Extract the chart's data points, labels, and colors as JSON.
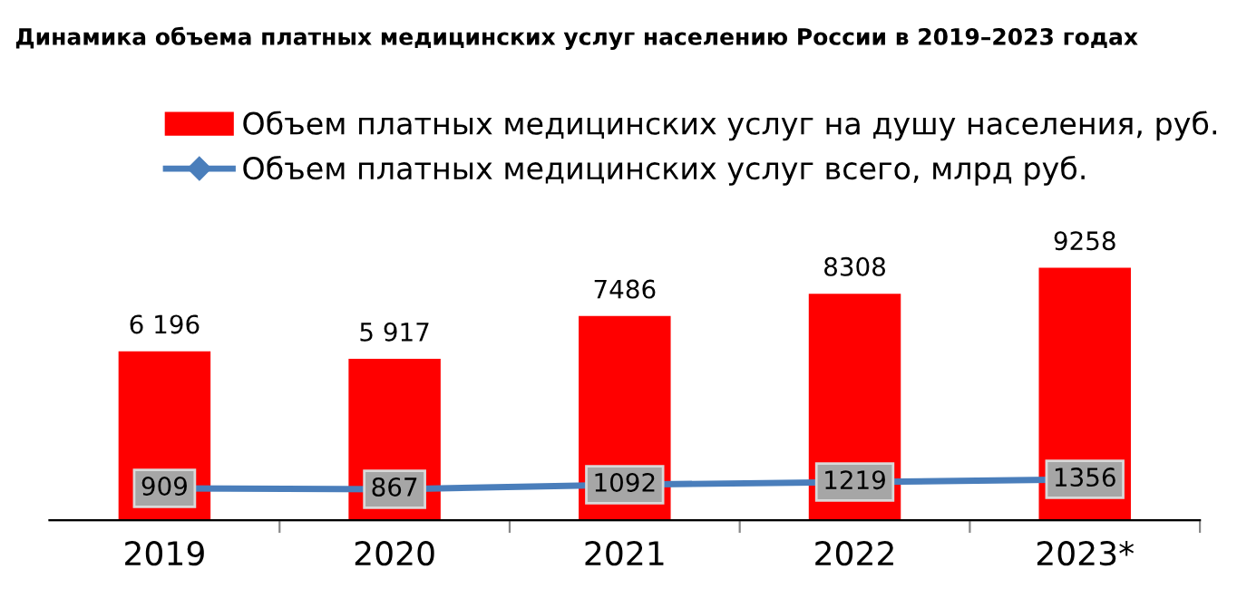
{
  "chart_data": {
    "type": "bar",
    "title": "Динамика объема платных медицинских услуг населению России в 2019–2023 годах",
    "categories": [
      "2019",
      "2020",
      "2021",
      "2022",
      "2023*"
    ],
    "series": [
      {
        "name": "Объем платных медицинских услуг на душу населения, руб.",
        "color": "#ff0000",
        "values": [
          6196,
          5917,
          7486,
          8308,
          9258
        ],
        "value_labels": [
          "6 196",
          "5 917",
          "7486",
          "8308",
          "9258"
        ]
      },
      {
        "name": "Объем платных медицинских услуг всего, млрд руб.",
        "type": "line",
        "axis": "y2",
        "color": "#4a7ebb",
        "marker": "diamond",
        "values": [
          909,
          867,
          1092,
          1219,
          1356
        ],
        "value_labels": [
          "909",
          "867",
          "1092",
          "1219",
          "1356"
        ]
      }
    ],
    "tick_labels": "x",
    "legend": "top"
  }
}
